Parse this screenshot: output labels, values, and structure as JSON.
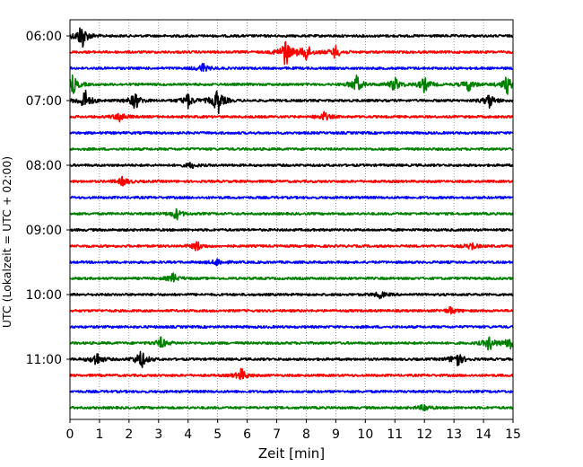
{
  "chart_data": {
    "type": "line",
    "title": "",
    "xlabel": "Zeit  [min]",
    "ylabel": "UTC (Lokalzeit = UTC + 02:00)",
    "xlim": [
      0,
      15
    ],
    "x_ticks": [
      "0",
      "1",
      "2",
      "3",
      "4",
      "5",
      "6",
      "7",
      "8",
      "9",
      "10",
      "11",
      "12",
      "13",
      "14",
      "15"
    ],
    "y_ticks": [
      "06:00",
      "07:00",
      "08:00",
      "09:00",
      "10:00",
      "11:00"
    ],
    "grid": "vertical dotted at each minute",
    "legend": "none",
    "trace_colors": [
      "#000000",
      "#ff0000",
      "#0000ff",
      "#008000"
    ],
    "traces": [
      {
        "start": "06:00",
        "color": "#000000",
        "events": [
          [
            0.4,
            1.5
          ]
        ]
      },
      {
        "start": "06:15",
        "color": "#ff0000",
        "events": [
          [
            7.3,
            1.5
          ],
          [
            8.0,
            1.0
          ],
          [
            9.0,
            0.7
          ]
        ]
      },
      {
        "start": "06:30",
        "color": "#0000ff",
        "events": [
          [
            4.5,
            0.5
          ]
        ]
      },
      {
        "start": "06:45",
        "color": "#008000",
        "events": [
          [
            0.1,
            1.0
          ],
          [
            9.7,
            1.0
          ],
          [
            11.0,
            0.8
          ],
          [
            12.0,
            0.8
          ],
          [
            13.5,
            0.7
          ],
          [
            14.8,
            1.0
          ]
        ]
      },
      {
        "start": "07:00",
        "color": "#000000",
        "events": [
          [
            0.5,
            1.2
          ],
          [
            2.2,
            1.0
          ],
          [
            4.0,
            0.8
          ],
          [
            5.0,
            1.5
          ],
          [
            14.2,
            0.8
          ]
        ]
      },
      {
        "start": "07:15",
        "color": "#ff0000",
        "events": [
          [
            1.7,
            0.6
          ],
          [
            8.6,
            0.5
          ]
        ]
      },
      {
        "start": "07:30",
        "color": "#0000ff",
        "events": []
      },
      {
        "start": "07:45",
        "color": "#008000",
        "events": []
      },
      {
        "start": "08:00",
        "color": "#000000",
        "events": [
          [
            4.1,
            0.3
          ]
        ]
      },
      {
        "start": "08:15",
        "color": "#ff0000",
        "events": [
          [
            1.8,
            0.5
          ]
        ]
      },
      {
        "start": "08:30",
        "color": "#0000ff",
        "events": []
      },
      {
        "start": "08:45",
        "color": "#008000",
        "events": [
          [
            3.6,
            0.6
          ]
        ]
      },
      {
        "start": "09:00",
        "color": "#000000",
        "events": []
      },
      {
        "start": "09:15",
        "color": "#ff0000",
        "events": [
          [
            4.3,
            0.5
          ],
          [
            13.6,
            0.4
          ]
        ]
      },
      {
        "start": "09:30",
        "color": "#0000ff",
        "events": [
          [
            5.0,
            0.4
          ]
        ]
      },
      {
        "start": "09:45",
        "color": "#008000",
        "events": [
          [
            3.5,
            0.5
          ]
        ]
      },
      {
        "start": "10:00",
        "color": "#000000",
        "events": [
          [
            10.5,
            0.4
          ]
        ]
      },
      {
        "start": "10:15",
        "color": "#ff0000",
        "events": [
          [
            12.9,
            0.4
          ]
        ]
      },
      {
        "start": "10:30",
        "color": "#0000ff",
        "events": []
      },
      {
        "start": "10:45",
        "color": "#008000",
        "events": [
          [
            3.1,
            0.6
          ],
          [
            14.2,
            0.8
          ],
          [
            14.9,
            0.8
          ]
        ]
      },
      {
        "start": "11:00",
        "color": "#000000",
        "events": [
          [
            0.9,
            0.8
          ],
          [
            2.4,
            1.1
          ],
          [
            13.1,
            1.0
          ]
        ]
      },
      {
        "start": "11:15",
        "color": "#ff0000",
        "events": [
          [
            5.8,
            0.7
          ]
        ]
      },
      {
        "start": "11:30",
        "color": "#0000ff",
        "events": []
      },
      {
        "start": "11:45",
        "color": "#008000",
        "events": [
          [
            12.0,
            0.4
          ]
        ]
      }
    ]
  }
}
